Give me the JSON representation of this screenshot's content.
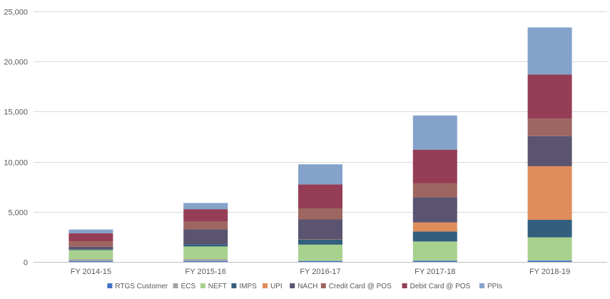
{
  "chart_data": {
    "type": "bar",
    "stacked": true,
    "title": "",
    "xlabel": "",
    "ylabel": "",
    "ylim": [
      0,
      25000
    ],
    "yticks": [
      0,
      5000,
      10000,
      15000,
      20000,
      25000
    ],
    "ytick_labels": [
      "0",
      "5,000",
      "10,000",
      "15,000",
      "20,000",
      "25,000"
    ],
    "grid": true,
    "legend_position": "bottom",
    "categories": [
      "FY 2014-15",
      "FY 2015-16",
      "FY 2016-17",
      "FY 2017-18",
      "FY 2018-19"
    ],
    "series": [
      {
        "name": "RTGS Customer",
        "color": "#4472c4",
        "values": [
          80,
          90,
          100,
          120,
          130
        ]
      },
      {
        "name": "ECS",
        "color": "#a5a5a5",
        "values": [
          200,
          200,
          20,
          20,
          20
        ]
      },
      {
        "name": "NEFT",
        "color": "#a9d18e",
        "values": [
          900,
          1250,
          1600,
          1900,
          2300
        ]
      },
      {
        "name": "IMPS",
        "color": "#335f7e",
        "values": [
          80,
          220,
          500,
          1000,
          1750
        ]
      },
      {
        "name": "UPI",
        "color": "#e08d5c",
        "values": [
          0,
          0,
          20,
          900,
          5350
        ]
      },
      {
        "name": "NACH",
        "color": "#5a5470",
        "values": [
          250,
          1500,
          2000,
          2500,
          3000
        ]
      },
      {
        "name": "Credit Card @ POS",
        "color": "#9d6660",
        "values": [
          550,
          800,
          1100,
          1400,
          1750
        ]
      },
      {
        "name": "Debit Card @ POS",
        "color": "#953d56",
        "values": [
          800,
          1200,
          2400,
          3350,
          4400
        ]
      },
      {
        "name": "PPIs",
        "color": "#84a2ca",
        "values": [
          370,
          620,
          2000,
          3420,
          4700
        ]
      }
    ]
  }
}
